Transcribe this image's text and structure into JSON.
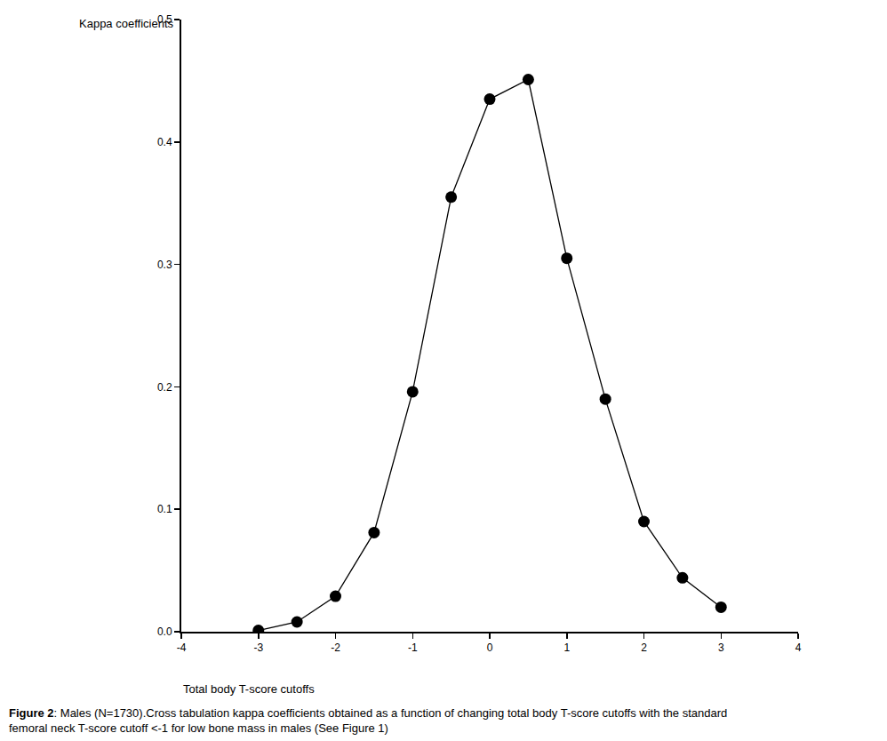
{
  "chart_data": {
    "type": "line",
    "caption": "Figure 2: Males (N=1730).Cross tabulation kappa coefficients obtained as a function of changing total body T-score cutoffs with the standard femoral neck T-score cutoff <-1 for low bone mass in males (See Figure 1)",
    "x_label": "Total body T-score cutoffs",
    "y_label": "Kappa coefficients",
    "x": [
      -3,
      -2.5,
      -2,
      -1.5,
      -1,
      -0.5,
      0,
      0.5,
      1,
      1.5,
      2,
      2.5,
      3
    ],
    "values": [
      0.001,
      0.008,
      0.029,
      0.081,
      0.196,
      0.355,
      0.435,
      0.451,
      0.305,
      0.19,
      0.09,
      0.044,
      0.02
    ],
    "color": "#000000",
    "marker": "circle",
    "line_style": "solid",
    "xlim": [
      -4,
      4
    ],
    "xticks": [
      -4,
      -3,
      -2,
      -1,
      0,
      1,
      2,
      3,
      4
    ],
    "ylim": [
      0,
      0.5
    ],
    "yticks": [
      {
        "value": 0,
        "label": "0.0"
      },
      0.1,
      0.2,
      0.3,
      0.4,
      0.5
    ],
    "grid": false
  }
}
